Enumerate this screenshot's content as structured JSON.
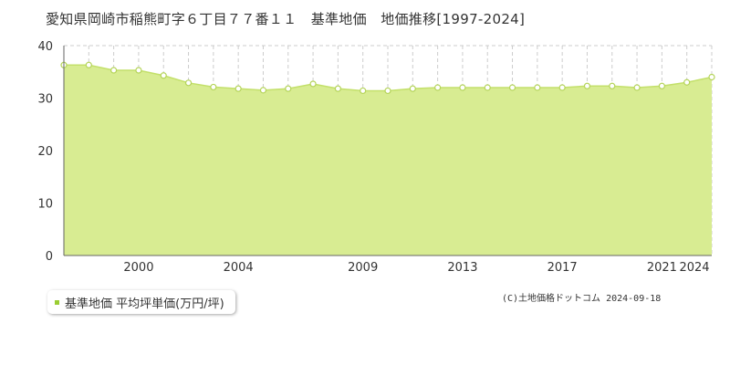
{
  "title": "愛知県岡崎市稲熊町字６丁目７７番１１　基準地価　地価推移[1997-2024]",
  "legend": {
    "label": "基準地価 平均坪単価(万円/坪)"
  },
  "credit": "(C)土地価格ドットコム 2024-09-18",
  "colors": {
    "fill": "#d8ec92",
    "line": "#c3e06a",
    "marker_stroke": "#b5d45a",
    "grid": "#cccccc",
    "legend_marker": "#9acd32"
  },
  "chart_data": {
    "type": "area",
    "series": [
      {
        "name": "基準地価 平均坪単価(万円/坪)",
        "x": [
          1997,
          1998,
          1999,
          2000,
          2001,
          2002,
          2003,
          2004,
          2005,
          2006,
          2007,
          2008,
          2009,
          2010,
          2011,
          2012,
          2013,
          2014,
          2015,
          2016,
          2017,
          2018,
          2019,
          2020,
          2021,
          2022,
          2023,
          2024
        ],
        "values": [
          36.3,
          36.3,
          35.3,
          35.3,
          34.3,
          32.9,
          32.1,
          31.8,
          31.5,
          31.8,
          32.7,
          31.8,
          31.4,
          31.4,
          31.8,
          32.0,
          32.0,
          32.0,
          32.0,
          32.0,
          32.0,
          32.3,
          32.3,
          32.0,
          32.3,
          33.0,
          34.0,
          34.0
        ]
      }
    ],
    "xlim": [
      1997,
      2023
    ],
    "x_ticks": [
      "2000",
      "2004",
      "2009",
      "2013",
      "2017",
      "2021",
      "2024"
    ],
    "y_ticks": [
      "0",
      "10",
      "20",
      "30",
      "40"
    ],
    "ylim": [
      0,
      40
    ],
    "grid": true
  }
}
